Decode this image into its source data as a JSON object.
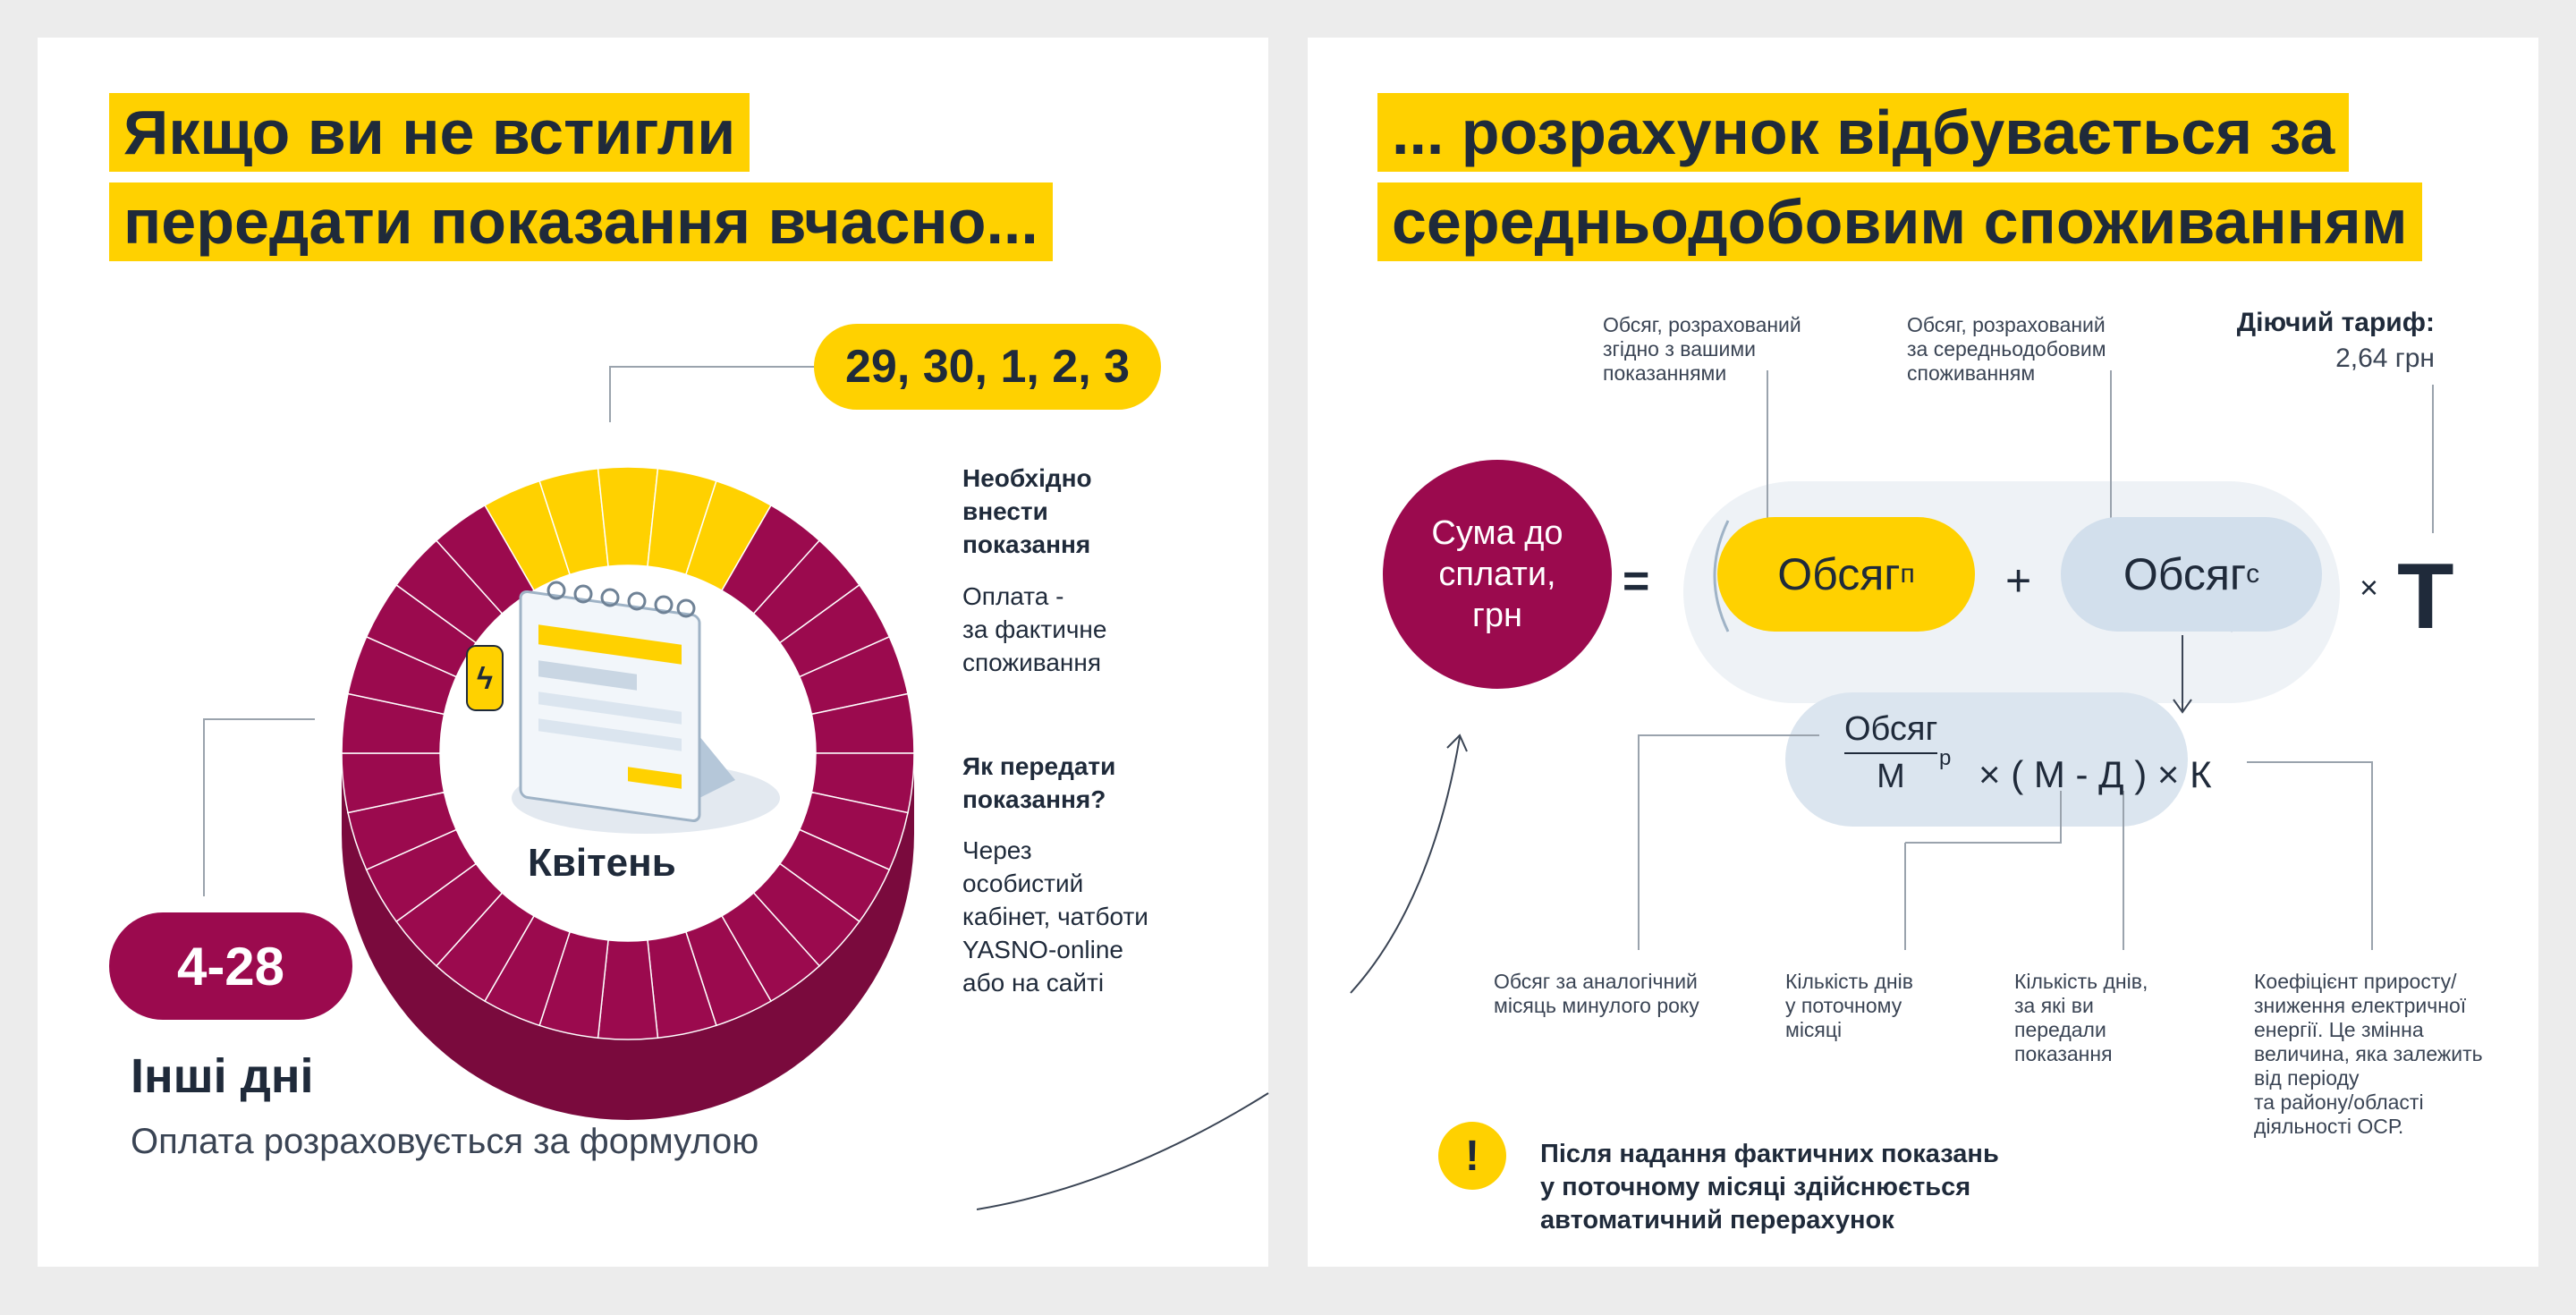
{
  "left": {
    "title_line1": "Якщо ви не встигли",
    "title_line2": "передати показання вчасно...",
    "days_badge": "29, 30, 1, 2, 3",
    "month": "Квітень",
    "other_days_badge": "4-28",
    "other_days_title": "Інші дні",
    "other_days_text": "Оплата розраховується за формулою",
    "info_heading1": [
      "Необхідно",
      "внести",
      "показання"
    ],
    "info_text1": [
      "Оплата -",
      "за фактичне",
      "споживання"
    ],
    "info_heading2": [
      "Як передати",
      "показання?"
    ],
    "info_text2": [
      "Через",
      "особистий",
      "кабінет, чатботи",
      "YASNO-online",
      "або на сайті"
    ]
  },
  "right": {
    "title_line1": "... розрахунок відбувається за",
    "title_line2": "середньодобовим споживанням",
    "sum_circle": [
      "Сума до",
      "сплати,",
      "грн"
    ],
    "equals": "=",
    "volume_p": "Обсяг",
    "volume_p_sub": "п",
    "plus": "+",
    "volume_c": "Обсяг",
    "volume_c_sub": "с",
    "times": "×",
    "tariff_symbol": "Т",
    "label_volume_readings": [
      "Обсяг, розрахований",
      "згідно з вашими",
      "показаннями"
    ],
    "label_volume_average": [
      "Обсяг, розрахований",
      "за середньодобовим",
      "споживанням"
    ],
    "tariff_title": "Діючий тариф:",
    "tariff_value": "2,64 грн",
    "formula_numerator": "Обсяг",
    "formula_numerator_sub": "р",
    "formula_denominator": "М",
    "formula_rest": "× ( М - Д ) × К",
    "label_prev_year": [
      "Обсяг за аналогічний",
      "місяць минулого року"
    ],
    "label_days_month": [
      "Кількість днів",
      "у поточному",
      "місяці"
    ],
    "label_days_not_sent": [
      "Кількість днів,",
      "за які ви",
      "передали",
      "показання"
    ],
    "label_coefficient": [
      "Коефіцієнт приросту/",
      "зниження електричної",
      "енергії. Це змінна",
      "величина, яка залежить",
      "від періоду",
      "та району/області",
      "діяльності ОСР."
    ],
    "warning_icon": "!",
    "warning_text": [
      "Після надання фактичних показань",
      "у поточному місяці здійснюється",
      "автоматичний перерахунок"
    ]
  },
  "colors": {
    "yellow": "#ffd100",
    "crimson": "#9b0a4e",
    "light_blue": "#dbe5ef",
    "formula_bg": "#eef2f6",
    "text": "#1f2a3a"
  }
}
